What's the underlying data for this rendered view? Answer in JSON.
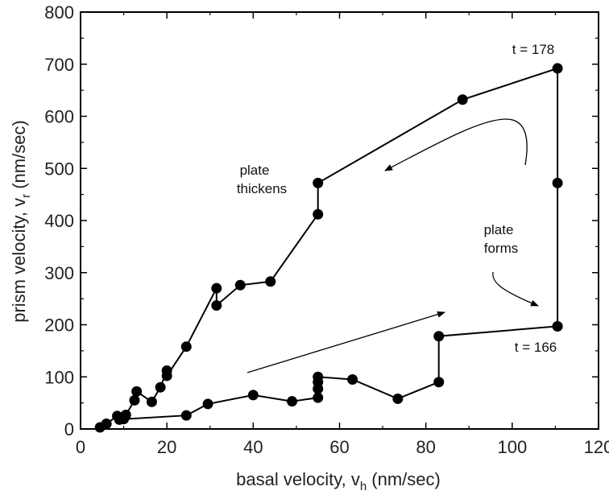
{
  "chart_data": {
    "type": "scatter",
    "xlabel": "basal velocity, v",
    "xlabel_sub": "h",
    "xlabel_unit": " (nm/sec)",
    "ylabel": "prism velocity, v",
    "ylabel_sub": "r",
    "ylabel_unit": " (nm/sec)",
    "xlim": [
      0,
      120
    ],
    "ylim": [
      0,
      800
    ],
    "xticks": [
      "0",
      "20",
      "40",
      "60",
      "80",
      "100",
      "120"
    ],
    "yticks": [
      "0",
      "100",
      "200",
      "300",
      "400",
      "500",
      "600",
      "700",
      "800"
    ],
    "grid": false,
    "series": [
      {
        "points": [
          [
            110.5,
            197
          ],
          [
            110.5,
            472
          ],
          [
            110.5,
            692
          ],
          [
            88.5,
            632
          ],
          [
            55,
            472
          ],
          [
            55,
            412
          ],
          [
            44,
            283
          ],
          [
            37,
            276
          ],
          [
            31.5,
            237
          ],
          [
            31.5,
            270
          ],
          [
            24.5,
            158
          ],
          [
            20,
            102
          ],
          [
            20,
            112
          ],
          [
            18.5,
            80
          ],
          [
            16.5,
            52
          ],
          [
            13,
            72
          ],
          [
            12.5,
            55
          ],
          [
            10.5,
            27
          ],
          [
            9,
            18
          ],
          [
            8.5,
            25
          ],
          [
            6,
            10
          ],
          [
            4.5,
            3
          ]
        ]
      },
      {
        "points": [
          [
            110.5,
            197
          ],
          [
            83,
            178
          ],
          [
            83,
            90
          ],
          [
            73.5,
            58
          ],
          [
            63,
            95
          ],
          [
            55,
            100
          ],
          [
            55,
            90
          ],
          [
            55,
            77
          ],
          [
            55,
            60
          ],
          [
            49,
            53
          ],
          [
            40,
            65
          ],
          [
            29.5,
            48
          ],
          [
            24.5,
            26
          ],
          [
            10,
            19
          ]
        ]
      }
    ],
    "annotations": {
      "t_start": "t = 178",
      "t_end": "t = 166",
      "plate_thickens_1": "plate",
      "plate_thickens_2": "thickens",
      "plate_forms_1": "plate",
      "plate_forms_2": "forms"
    },
    "colors": {
      "marker": "#000000",
      "line": "#000000",
      "axis": "#000000"
    }
  }
}
